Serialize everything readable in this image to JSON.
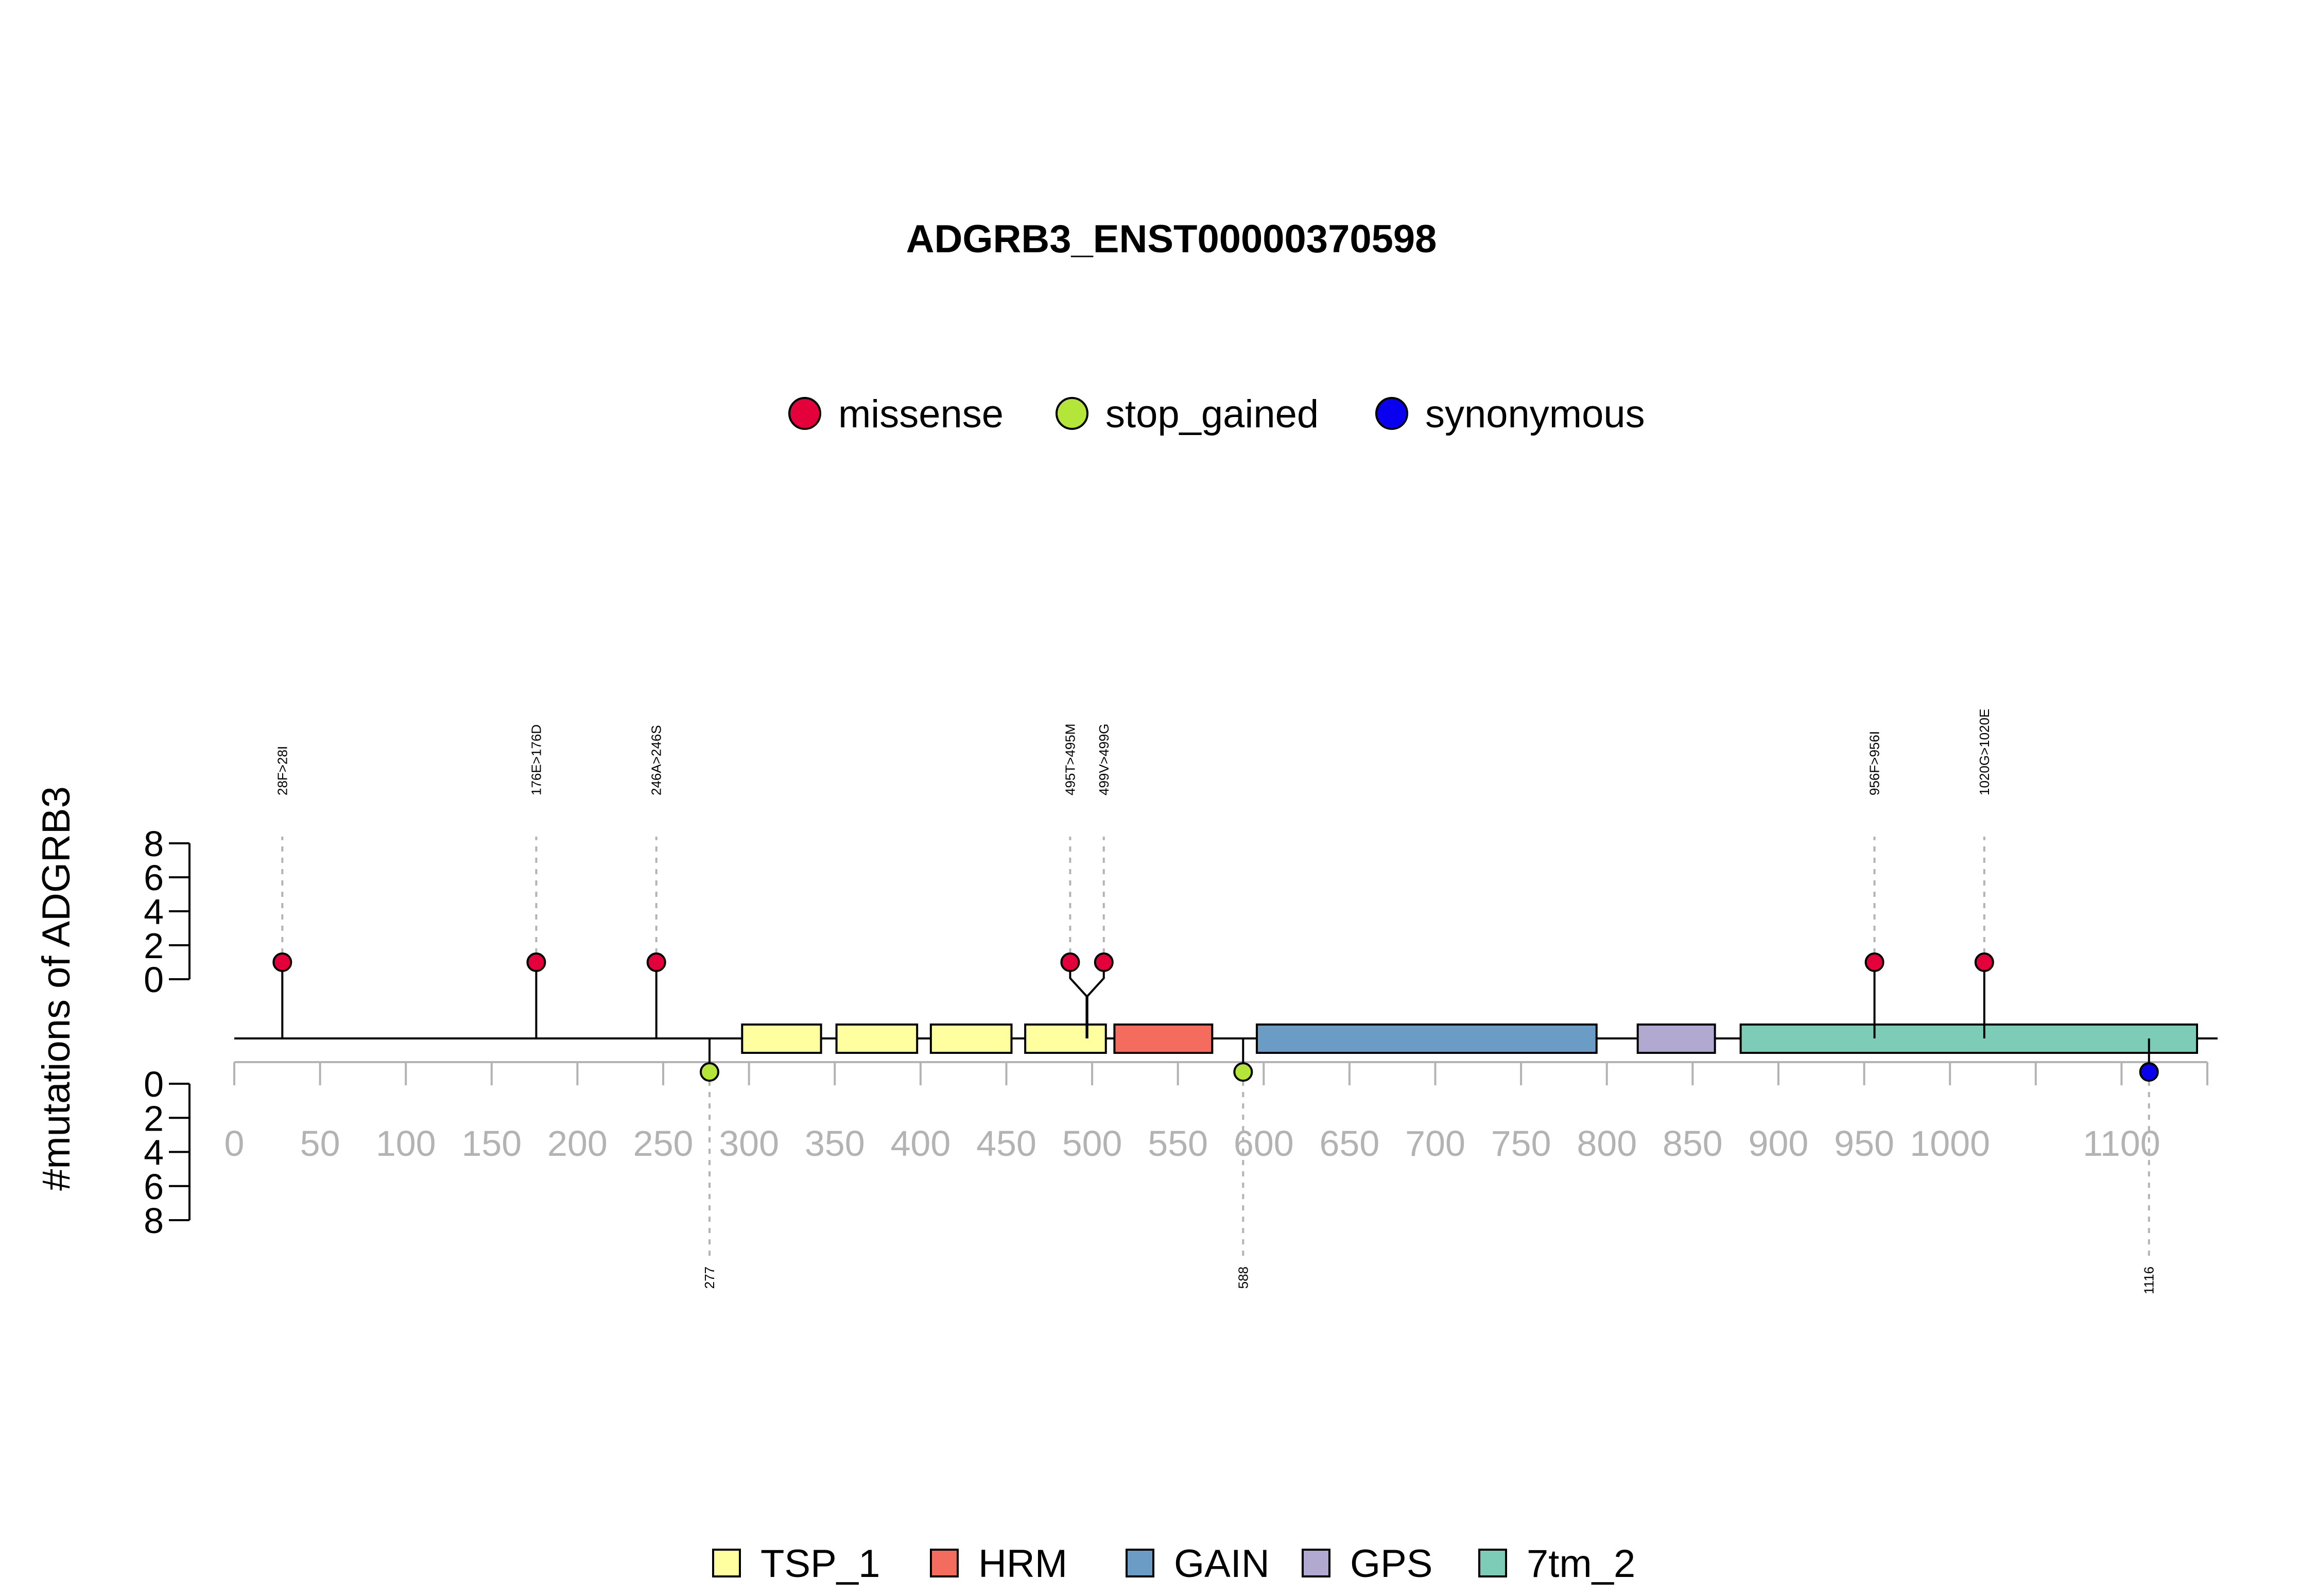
{
  "chart_data": {
    "type": "lollipop",
    "title": "ADGRB3_ENST00000370598",
    "ylabel": "#mutations of ADGRB3",
    "protein_length": 1150,
    "xlim": [
      0,
      1150
    ],
    "x_ticks": [
      0,
      50,
      100,
      150,
      200,
      250,
      300,
      350,
      400,
      450,
      500,
      550,
      600,
      650,
      700,
      750,
      800,
      850,
      900,
      950,
      1000,
      1100
    ],
    "y_ticks_top": [
      0,
      2,
      4,
      6,
      8
    ],
    "y_ticks_bottom": [
      0,
      2,
      4,
      6,
      8
    ],
    "ylim": [
      0,
      8
    ],
    "mutation_legend": [
      {
        "name": "missense",
        "color": "#e4003a"
      },
      {
        "name": "stop_gained",
        "color": "#b3e639"
      },
      {
        "name": "synonymous",
        "color": "#0a00f0"
      }
    ],
    "domain_legend": [
      {
        "name": "TSP_1",
        "color": "#ffff9f"
      },
      {
        "name": "HRM",
        "color": "#f46c5e"
      },
      {
        "name": "GAIN",
        "color": "#6a9cc6"
      },
      {
        "name": "GPS",
        "color": "#b1a9cf"
      },
      {
        "name": "7tm_2",
        "color": "#7cccb8"
      }
    ],
    "domains": [
      {
        "name": "TSP_1",
        "start": 296,
        "end": 342,
        "color": "#ffff9f"
      },
      {
        "name": "TSP_1",
        "start": 351,
        "end": 398,
        "color": "#ffff9f"
      },
      {
        "name": "TSP_1",
        "start": 406,
        "end": 453,
        "color": "#ffff9f"
      },
      {
        "name": "TSP_1",
        "start": 461,
        "end": 508,
        "color": "#ffff9f"
      },
      {
        "name": "HRM",
        "start": 513,
        "end": 570,
        "color": "#f46c5e"
      },
      {
        "name": "GAIN",
        "start": 596,
        "end": 794,
        "color": "#6a9cc6"
      },
      {
        "name": "GPS",
        "start": 818,
        "end": 863,
        "color": "#b1a9cf"
      },
      {
        "name": "7tm_2",
        "start": 878,
        "end": 1144,
        "color": "#7cccb8"
      }
    ],
    "mutations_top": [
      {
        "pos": 28,
        "count": 1,
        "type": "missense",
        "label": "28F>28I"
      },
      {
        "pos": 176,
        "count": 1,
        "type": "missense",
        "label": "176E>176D"
      },
      {
        "pos": 246,
        "count": 1,
        "type": "missense",
        "label": "246A>246S"
      },
      {
        "pos": 495,
        "count": 1,
        "type": "missense",
        "label": "495T>495M"
      },
      {
        "pos": 499,
        "count": 1,
        "type": "missense",
        "label": "499V>499G"
      },
      {
        "pos": 956,
        "count": 1,
        "type": "missense",
        "label": "956F>956I"
      },
      {
        "pos": 1020,
        "count": 1,
        "type": "missense",
        "label": "1020G>1020E"
      }
    ],
    "mutations_bottom": [
      {
        "pos": 277,
        "count": 1,
        "type": "stop_gained",
        "label": "277"
      },
      {
        "pos": 588,
        "count": 1,
        "type": "stop_gained",
        "label": "588"
      },
      {
        "pos": 1116,
        "count": 1,
        "type": "synonymous",
        "label": "1116"
      }
    ]
  }
}
